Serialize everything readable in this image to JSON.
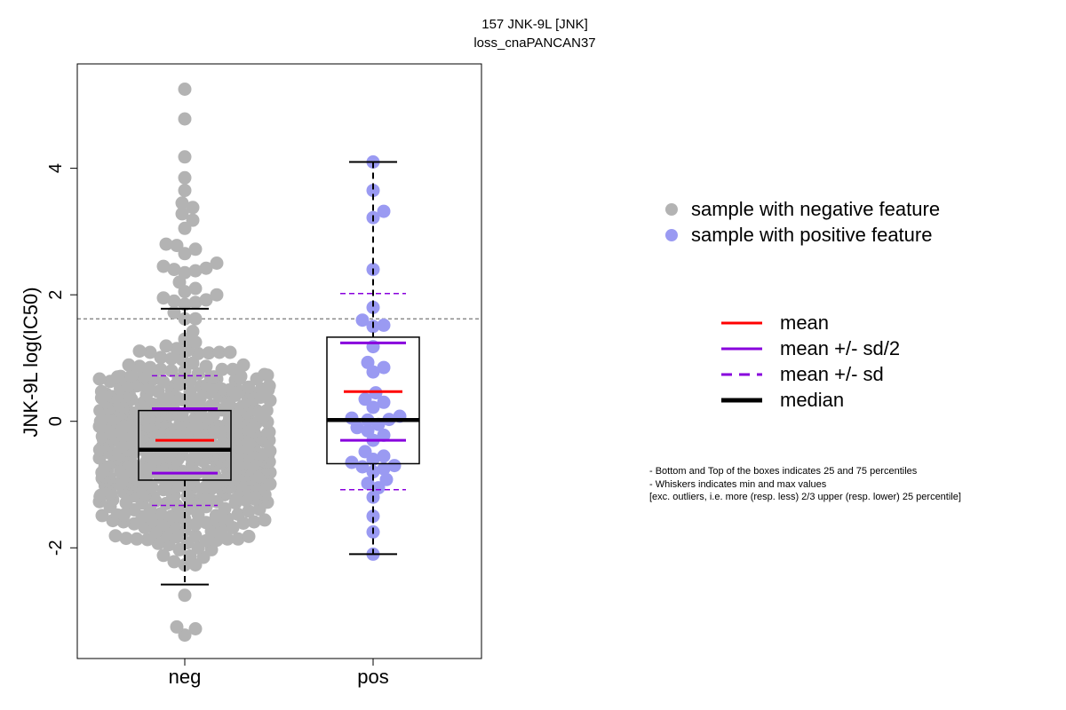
{
  "chart_data": {
    "type": "box-beeswarm",
    "title": "157 JNK-9L [JNK]",
    "subtitle": "loss_cnaPANCAN37",
    "ylabel": "JNK-9L log(IC50)",
    "xlabel": "",
    "ylim": [
      -3.75,
      5.65
    ],
    "yticks": [
      -2,
      0,
      2,
      4
    ],
    "ytick_labels": [
      "-2",
      "0",
      "2",
      "4"
    ],
    "categories": [
      "neg",
      "pos"
    ],
    "threshold_line": 1.62,
    "colors": {
      "neg": "#b3b3b3",
      "pos": "#9a9af2",
      "mean": "#ff0000",
      "sd": "#8800dd",
      "median": "#000000",
      "box": "#000000",
      "threshold": "#777777"
    },
    "groups": [
      {
        "name": "neg",
        "n": 620,
        "whisker_low": -2.58,
        "q1": -0.93,
        "median": -0.45,
        "q3": 0.17,
        "whisker_high": 1.78,
        "mean": -0.3,
        "mean_minus_halfsd": -0.82,
        "mean_plus_halfsd": 0.2,
        "mean_minus_sd": -1.33,
        "mean_plus_sd": 0.72,
        "outliers": [
          5.25,
          4.78,
          4.18,
          3.85,
          3.65,
          3.45,
          3.38,
          3.28,
          3.18,
          3.05,
          2.8,
          2.78,
          2.72,
          2.65,
          2.5,
          2.45,
          2.42,
          2.4,
          2.38,
          2.35,
          2.2,
          2.1,
          2.05,
          2.0,
          1.95,
          1.92,
          1.9,
          1.88,
          1.85,
          -2.75,
          -3.25,
          -3.28,
          -3.38
        ]
      },
      {
        "name": "pos",
        "n": 41,
        "whisker_low": -2.1,
        "q1": -0.67,
        "median": 0.02,
        "q3": 1.33,
        "whisker_high": 4.1,
        "mean": 0.47,
        "mean_minus_halfsd": -0.3,
        "mean_plus_halfsd": 1.24,
        "mean_minus_sd": -1.08,
        "mean_plus_sd": 2.02,
        "values": [
          4.1,
          3.65,
          3.32,
          3.22,
          2.4,
          1.8,
          1.6,
          1.52,
          1.5,
          1.18,
          0.93,
          0.85,
          0.78,
          0.45,
          0.35,
          0.3,
          0.22,
          0.08,
          0.05,
          0.03,
          0.02,
          -0.05,
          -0.1,
          -0.15,
          -0.22,
          -0.3,
          -0.48,
          -0.55,
          -0.6,
          -0.65,
          -0.7,
          -0.72,
          -0.75,
          -0.8,
          -0.92,
          -0.98,
          -1.05,
          -1.2,
          -1.5,
          -1.75,
          -2.1
        ]
      }
    ],
    "legend_points": [
      {
        "label": "sample with negative feature",
        "color": "#b3b3b3"
      },
      {
        "label": "sample with positive feature",
        "color": "#9a9af2"
      }
    ],
    "legend_lines": [
      {
        "label": "mean",
        "color": "#ff0000",
        "style": "solid",
        "weight": "normal"
      },
      {
        "label": "mean +/- sd/2",
        "color": "#8800dd",
        "style": "solid",
        "weight": "normal"
      },
      {
        "label": "mean +/- sd",
        "color": "#8800dd",
        "style": "dashed",
        "weight": "normal"
      },
      {
        "label": "median",
        "color": "#000000",
        "style": "solid",
        "weight": "bold"
      }
    ],
    "notes": [
      "- Bottom and Top of the boxes indicates 25 and 75 percentiles",
      "- Whiskers indicates min and max values",
      "[exc. outliers, i.e. more (resp. less) 2/3 upper (resp. lower) 25 percentile]"
    ]
  }
}
